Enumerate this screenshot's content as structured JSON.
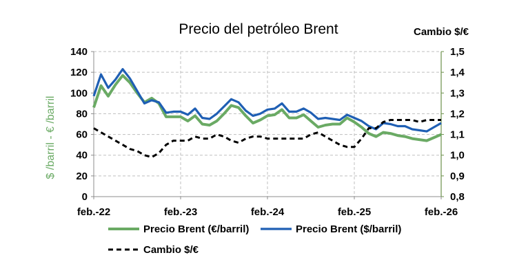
{
  "chart_data": {
    "type": "line",
    "title": "Precio del petróleo Brent",
    "ylabel": "$ /barril  -  € /barril",
    "y2label": "Cambio $/€",
    "ylim": [
      0,
      140
    ],
    "yticks": [
      0,
      20,
      40,
      60,
      80,
      100,
      120,
      140
    ],
    "y2lim": [
      0.8,
      1.5
    ],
    "y2ticks": [
      "0,8",
      "0,9",
      "1,0",
      "1,1",
      "1,2",
      "1,3",
      "1,4",
      "1,5"
    ],
    "xtick_labels": [
      "feb.-22",
      "feb.-23",
      "feb.-24",
      "feb.-25",
      "feb.-26"
    ],
    "xtick_index": [
      0,
      12,
      24,
      36,
      48
    ],
    "grid": true,
    "legend_position": "bottom",
    "colors": {
      "eur": "#6aaa64",
      "usd": "#1f5fb4",
      "fx": "#000000",
      "axis_left": "#6aaa64",
      "axis_right": "#6b8f4a"
    },
    "series": [
      {
        "name": "Precio Brent (€/barril)",
        "axis": "left",
        "values": [
          86,
          107,
          97,
          108,
          117,
          110,
          100,
          91,
          95,
          90,
          77,
          77,
          77,
          73,
          78,
          70,
          69,
          73,
          80,
          88,
          86,
          78,
          71,
          74,
          78,
          79,
          84,
          76,
          76,
          79,
          73,
          67,
          69,
          70,
          70,
          76,
          72,
          67,
          61,
          58,
          62,
          61,
          59,
          58,
          56,
          55,
          54,
          57,
          60
        ]
      },
      {
        "name": "Precio Brent ($/barril)",
        "axis": "left",
        "values": [
          97,
          118,
          105,
          113,
          123,
          114,
          102,
          90,
          93,
          91,
          81,
          82,
          82,
          79,
          85,
          76,
          75,
          80,
          87,
          94,
          91,
          83,
          78,
          80,
          84,
          85,
          90,
          82,
          82,
          85,
          81,
          75,
          76,
          75,
          74,
          79,
          76,
          73,
          68,
          65,
          71,
          70,
          68,
          68,
          65,
          64,
          63,
          67,
          71
        ]
      },
      {
        "name": "Cambio $/€",
        "axis": "right",
        "values": [
          1.13,
          1.11,
          1.09,
          1.07,
          1.05,
          1.03,
          1.02,
          1.0,
          0.99,
          1.01,
          1.05,
          1.07,
          1.07,
          1.07,
          1.09,
          1.08,
          1.08,
          1.1,
          1.09,
          1.07,
          1.06,
          1.08,
          1.09,
          1.09,
          1.08,
          1.08,
          1.08,
          1.08,
          1.08,
          1.08,
          1.1,
          1.11,
          1.09,
          1.07,
          1.05,
          1.04,
          1.04,
          1.08,
          1.13,
          1.13,
          1.16,
          1.17,
          1.17,
          1.17,
          1.17,
          1.16,
          1.17,
          1.17,
          1.17
        ]
      }
    ]
  }
}
